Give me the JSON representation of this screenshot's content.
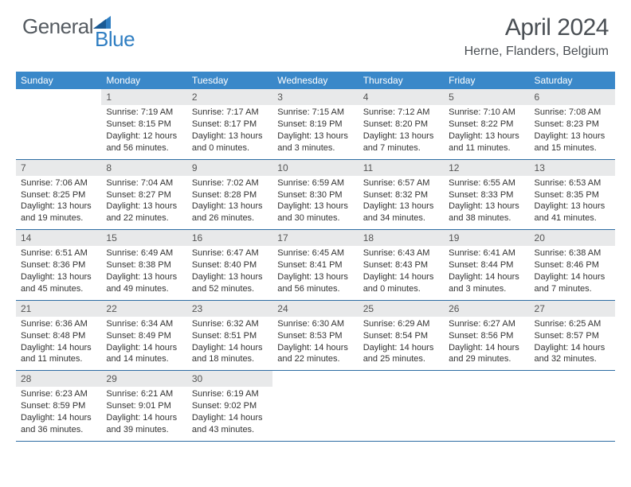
{
  "logo": {
    "textA": "General",
    "textB": "Blue"
  },
  "title": "April 2024",
  "location": "Herne, Flanders, Belgium",
  "colors": {
    "header_bar": "#3a88c9",
    "week_border": "#2d6ca3",
    "daynum_bg": "#e8e9ea",
    "page_bg": "#ffffff",
    "title_color": "#4a4f54",
    "logo_gray": "#555b61",
    "logo_blue": "#2f7ec2",
    "text": "#333333"
  },
  "dayNames": [
    "Sunday",
    "Monday",
    "Tuesday",
    "Wednesday",
    "Thursday",
    "Friday",
    "Saturday"
  ],
  "labels": {
    "sunrise": "Sunrise:",
    "sunset": "Sunset:",
    "daylight": "Daylight:"
  },
  "weeks": [
    [
      null,
      {
        "n": "1",
        "sr": "7:19 AM",
        "ss": "8:15 PM",
        "dl": "12 hours and 56 minutes."
      },
      {
        "n": "2",
        "sr": "7:17 AM",
        "ss": "8:17 PM",
        "dl": "13 hours and 0 minutes."
      },
      {
        "n": "3",
        "sr": "7:15 AM",
        "ss": "8:19 PM",
        "dl": "13 hours and 3 minutes."
      },
      {
        "n": "4",
        "sr": "7:12 AM",
        "ss": "8:20 PM",
        "dl": "13 hours and 7 minutes."
      },
      {
        "n": "5",
        "sr": "7:10 AM",
        "ss": "8:22 PM",
        "dl": "13 hours and 11 minutes."
      },
      {
        "n": "6",
        "sr": "7:08 AM",
        "ss": "8:23 PM",
        "dl": "13 hours and 15 minutes."
      }
    ],
    [
      {
        "n": "7",
        "sr": "7:06 AM",
        "ss": "8:25 PM",
        "dl": "13 hours and 19 minutes."
      },
      {
        "n": "8",
        "sr": "7:04 AM",
        "ss": "8:27 PM",
        "dl": "13 hours and 22 minutes."
      },
      {
        "n": "9",
        "sr": "7:02 AM",
        "ss": "8:28 PM",
        "dl": "13 hours and 26 minutes."
      },
      {
        "n": "10",
        "sr": "6:59 AM",
        "ss": "8:30 PM",
        "dl": "13 hours and 30 minutes."
      },
      {
        "n": "11",
        "sr": "6:57 AM",
        "ss": "8:32 PM",
        "dl": "13 hours and 34 minutes."
      },
      {
        "n": "12",
        "sr": "6:55 AM",
        "ss": "8:33 PM",
        "dl": "13 hours and 38 minutes."
      },
      {
        "n": "13",
        "sr": "6:53 AM",
        "ss": "8:35 PM",
        "dl": "13 hours and 41 minutes."
      }
    ],
    [
      {
        "n": "14",
        "sr": "6:51 AM",
        "ss": "8:36 PM",
        "dl": "13 hours and 45 minutes."
      },
      {
        "n": "15",
        "sr": "6:49 AM",
        "ss": "8:38 PM",
        "dl": "13 hours and 49 minutes."
      },
      {
        "n": "16",
        "sr": "6:47 AM",
        "ss": "8:40 PM",
        "dl": "13 hours and 52 minutes."
      },
      {
        "n": "17",
        "sr": "6:45 AM",
        "ss": "8:41 PM",
        "dl": "13 hours and 56 minutes."
      },
      {
        "n": "18",
        "sr": "6:43 AM",
        "ss": "8:43 PM",
        "dl": "14 hours and 0 minutes."
      },
      {
        "n": "19",
        "sr": "6:41 AM",
        "ss": "8:44 PM",
        "dl": "14 hours and 3 minutes."
      },
      {
        "n": "20",
        "sr": "6:38 AM",
        "ss": "8:46 PM",
        "dl": "14 hours and 7 minutes."
      }
    ],
    [
      {
        "n": "21",
        "sr": "6:36 AM",
        "ss": "8:48 PM",
        "dl": "14 hours and 11 minutes."
      },
      {
        "n": "22",
        "sr": "6:34 AM",
        "ss": "8:49 PM",
        "dl": "14 hours and 14 minutes."
      },
      {
        "n": "23",
        "sr": "6:32 AM",
        "ss": "8:51 PM",
        "dl": "14 hours and 18 minutes."
      },
      {
        "n": "24",
        "sr": "6:30 AM",
        "ss": "8:53 PM",
        "dl": "14 hours and 22 minutes."
      },
      {
        "n": "25",
        "sr": "6:29 AM",
        "ss": "8:54 PM",
        "dl": "14 hours and 25 minutes."
      },
      {
        "n": "26",
        "sr": "6:27 AM",
        "ss": "8:56 PM",
        "dl": "14 hours and 29 minutes."
      },
      {
        "n": "27",
        "sr": "6:25 AM",
        "ss": "8:57 PM",
        "dl": "14 hours and 32 minutes."
      }
    ],
    [
      {
        "n": "28",
        "sr": "6:23 AM",
        "ss": "8:59 PM",
        "dl": "14 hours and 36 minutes."
      },
      {
        "n": "29",
        "sr": "6:21 AM",
        "ss": "9:01 PM",
        "dl": "14 hours and 39 minutes."
      },
      {
        "n": "30",
        "sr": "6:19 AM",
        "ss": "9:02 PM",
        "dl": "14 hours and 43 minutes."
      },
      null,
      null,
      null,
      null
    ]
  ]
}
